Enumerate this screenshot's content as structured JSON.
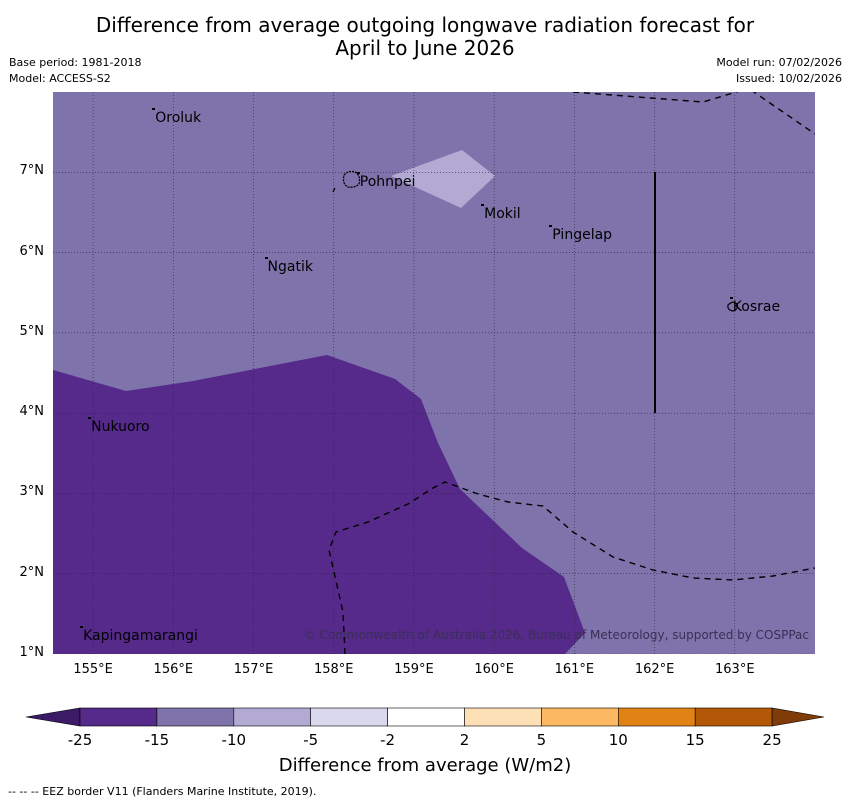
{
  "title": {
    "line1": "Difference from average outgoing longwave radiation forecast for",
    "line2": "April to June 2026"
  },
  "meta": {
    "base_period": "Base period: 1981-2018",
    "model": "Model: ACCESS-S2",
    "model_run": "Model run: 07/02/2026",
    "issued": "Issued: 10/02/2026"
  },
  "map": {
    "lon_range": [
      154.5,
      164.0
    ],
    "lat_range": [
      1.0,
      8.0
    ],
    "background_color": "#7f73ab",
    "colors": {
      "anomaly_-15_-25": "#552a8a",
      "anomaly_-15_-10": "#7f73ab",
      "anomaly_-10_-5": "#b2aad2"
    },
    "lon_ticks": [
      "155°E",
      "156°E",
      "157°E",
      "158°E",
      "159°E",
      "160°E",
      "161°E",
      "162°E",
      "163°E"
    ],
    "lat_ticks": [
      "7°N",
      "6°N",
      "5°N",
      "4°N",
      "3°N",
      "2°N",
      "1°N"
    ],
    "places": [
      {
        "name": "Oroluk",
        "lon": 155.75,
        "lat": 7.65
      },
      {
        "name": "Pohnpei",
        "lon": 158.3,
        "lat": 6.85
      },
      {
        "name": "Mokil",
        "lon": 159.85,
        "lat": 6.45
      },
      {
        "name": "Pingelap",
        "lon": 160.7,
        "lat": 6.2
      },
      {
        "name": "Ngatik",
        "lon": 157.15,
        "lat": 5.8
      },
      {
        "name": "Kosrae",
        "lon": 162.95,
        "lat": 5.3
      },
      {
        "name": "Nukuoro",
        "lon": 154.95,
        "lat": 3.8
      },
      {
        "name": "Kapingamarangi",
        "lon": 154.85,
        "lat": 1.2
      }
    ],
    "copyright": "© Commonwealth of Australia 2026, Bureau of Meteorology, supported by COSPPac"
  },
  "colorbar": {
    "ticks": [
      "-25",
      "-15",
      "-10",
      "-5",
      "-2",
      "2",
      "5",
      "10",
      "15",
      "25"
    ],
    "colors": [
      "#3b1a66",
      "#552a8a",
      "#7f73ab",
      "#b2aad2",
      "#d9d8ed",
      "#ffffff",
      "#fee0b6",
      "#fdb863",
      "#e08214",
      "#b35806",
      "#7f3b08"
    ],
    "title": "Difference from average (W/m2)"
  },
  "footnote": "--  --  -- EEZ border V11 (Flanders Marine Institute, 2019)."
}
